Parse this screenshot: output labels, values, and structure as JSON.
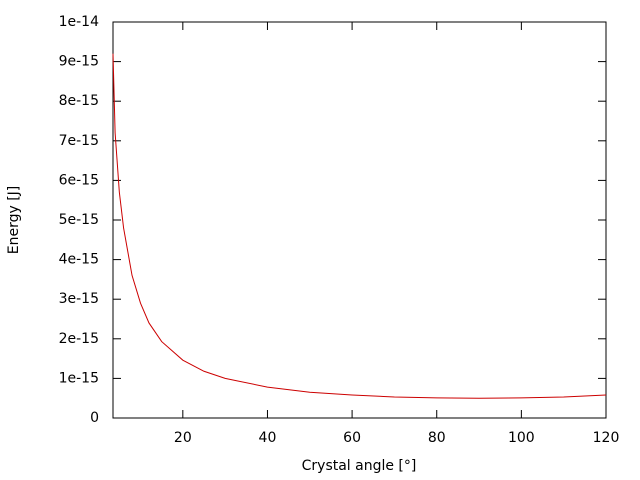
{
  "chart_data": {
    "type": "line",
    "x_label": "Crystal angle [°]",
    "y_label": "Energy [J]",
    "x": [
      3.5,
      4,
      5,
      6,
      8,
      10,
      12,
      15,
      20,
      25,
      30,
      40,
      50,
      60,
      70,
      80,
      90,
      100,
      110,
      120
    ],
    "series": [
      {
        "color": "#cc0000",
        "values": [
          9.2e-15,
          7.2e-15,
          5.7e-15,
          4.8e-15,
          3.6e-15,
          2.9e-15,
          2.4e-15,
          1.93e-15,
          1.46e-15,
          1.18e-15,
          1e-15,
          7.8e-16,
          6.5e-16,
          5.8e-16,
          5.3e-16,
          5.08e-16,
          5e-16,
          5.08e-16,
          5.3e-16,
          5.8e-16
        ]
      }
    ],
    "xlim": [
      3.5,
      120
    ],
    "xticks": [
      20,
      40,
      60,
      80,
      100,
      120
    ],
    "ylim": [
      0,
      1e-14
    ],
    "yticks": [
      0,
      1e-15,
      2e-15,
      3e-15,
      4e-15,
      5e-15,
      6e-15,
      7e-15,
      8e-15,
      9e-15,
      1e-14
    ],
    "grid": false
  }
}
